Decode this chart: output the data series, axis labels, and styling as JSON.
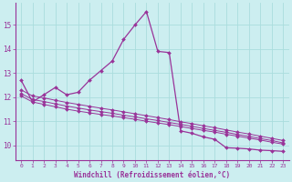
{
  "xlabel": "Windchill (Refroidissement éolien,°C)",
  "background_color": "#cceef0",
  "line_color": "#993399",
  "grid_color": "#aadddd",
  "xlim": [
    -0.5,
    23.5
  ],
  "ylim": [
    9.4,
    15.9
  ],
  "yticks": [
    10,
    11,
    12,
    13,
    14,
    15
  ],
  "xticks": [
    0,
    1,
    2,
    3,
    4,
    5,
    6,
    7,
    8,
    9,
    10,
    11,
    12,
    13,
    14,
    15,
    16,
    17,
    18,
    19,
    20,
    21,
    22,
    23
  ],
  "series": {
    "main": [
      12.7,
      11.8,
      12.1,
      12.4,
      12.1,
      12.2,
      12.7,
      13.1,
      13.5,
      14.4,
      15.0,
      15.55,
      13.9,
      13.85,
      10.6,
      10.5,
      10.35,
      10.25,
      9.9,
      9.88,
      9.85,
      9.8,
      9.78,
      9.75
    ],
    "line1": [
      12.05,
      11.8,
      11.7,
      11.6,
      11.5,
      11.42,
      11.35,
      11.28,
      11.22,
      11.15,
      11.08,
      11.0,
      10.93,
      10.86,
      10.78,
      10.7,
      10.62,
      10.55,
      10.46,
      10.38,
      10.3,
      10.22,
      10.13,
      10.05
    ],
    "line2": [
      12.15,
      11.9,
      11.82,
      11.72,
      11.63,
      11.55,
      11.47,
      11.4,
      11.33,
      11.25,
      11.18,
      11.1,
      11.03,
      10.95,
      10.87,
      10.79,
      10.7,
      10.62,
      10.54,
      10.45,
      10.37,
      10.28,
      10.2,
      10.1
    ],
    "line3": [
      12.3,
      12.05,
      11.97,
      11.87,
      11.78,
      11.7,
      11.62,
      11.54,
      11.47,
      11.39,
      11.31,
      11.23,
      11.15,
      11.07,
      10.98,
      10.9,
      10.81,
      10.73,
      10.64,
      10.55,
      10.47,
      10.38,
      10.29,
      10.2
    ]
  }
}
